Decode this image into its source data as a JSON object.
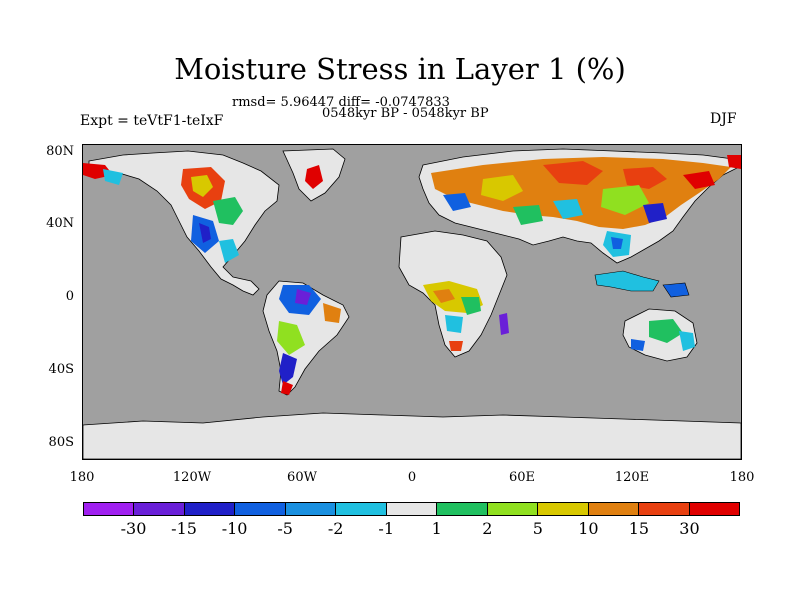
{
  "title": "Moisture Stress in Layer 1 (%)",
  "stats": "rmsd= 5.96447 diff= -0.0747833",
  "period": "0548kyr BP - 0548kyr BP",
  "experiment": "Expt = teVtF1-teIxF",
  "season": "DJF",
  "map": {
    "lat_ticks": [
      "80N",
      "40N",
      "0",
      "40S",
      "80S"
    ],
    "lon_ticks": [
      "180",
      "120W",
      "60W",
      "0",
      "60E",
      "120E",
      "180"
    ],
    "ocean_color": "#a0a0a0",
    "land_neutral_color": "#e6e6e6"
  },
  "colorbar": {
    "colors": [
      "#a020f0",
      "#6a1fd8",
      "#2020c8",
      "#1060e0",
      "#1a90e0",
      "#20c0e0",
      "#e6e6e6",
      "#20c060",
      "#90e020",
      "#d8c800",
      "#e08010",
      "#e84010",
      "#e00000"
    ],
    "labels": [
      "-30",
      "-15",
      "-10",
      "-5",
      "-2",
      "-1",
      "1",
      "2",
      "5",
      "10",
      "15",
      "30"
    ]
  }
}
